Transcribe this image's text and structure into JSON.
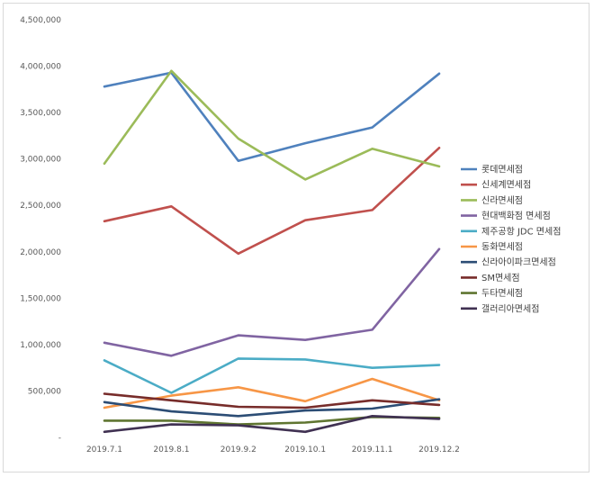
{
  "chart_data": {
    "type": "line",
    "title": "",
    "xlabel": "",
    "ylabel": "",
    "categories": [
      "2019.7.1",
      "2019.8.1",
      "2019.9.2",
      "2019.10.1",
      "2019.11.1",
      "2019.12.2"
    ],
    "ylim": [
      0,
      4500000
    ],
    "yticks": [
      0,
      500000,
      1000000,
      1500000,
      2000000,
      2500000,
      3000000,
      3500000,
      4000000,
      4500000
    ],
    "ytick_labels": [
      "-",
      "500,000",
      "1,000,000",
      "1,500,000",
      "2,000,000",
      "2,500,000",
      "3,000,000",
      "3,500,000",
      "4,000,000",
      "4,500,000"
    ],
    "grid": false,
    "legend_position": "right",
    "series": [
      {
        "name": "롯데면세점",
        "color": "#4f81bd",
        "values": [
          3780000,
          3930000,
          2980000,
          3170000,
          3340000,
          3920000
        ]
      },
      {
        "name": "신세계면세점",
        "color": "#c0504d",
        "values": [
          2330000,
          2490000,
          1980000,
          2340000,
          2450000,
          3120000
        ]
      },
      {
        "name": "신라면세점",
        "color": "#9bbb59",
        "values": [
          2950000,
          3950000,
          3220000,
          2780000,
          3110000,
          2920000
        ]
      },
      {
        "name": "현대백화점 면세점",
        "color": "#8064a2",
        "values": [
          1020000,
          880000,
          1100000,
          1050000,
          1160000,
          2030000
        ]
      },
      {
        "name": "제주공항 JDC 면세점",
        "color": "#4bacc6",
        "values": [
          830000,
          480000,
          850000,
          840000,
          750000,
          780000
        ]
      },
      {
        "name": "동화면세점",
        "color": "#f79646",
        "values": [
          320000,
          450000,
          540000,
          390000,
          630000,
          400000
        ]
      },
      {
        "name": "신라아이파크면세점",
        "color": "#2c4d75",
        "values": [
          380000,
          280000,
          230000,
          290000,
          310000,
          410000
        ]
      },
      {
        "name": "SM면세점",
        "color": "#772c2a",
        "values": [
          470000,
          400000,
          330000,
          320000,
          400000,
          350000
        ]
      },
      {
        "name": "두타면세점",
        "color": "#5f7530",
        "values": [
          180000,
          180000,
          140000,
          160000,
          220000,
          210000
        ]
      },
      {
        "name": "갤러리아면세점",
        "color": "#403152",
        "values": [
          60000,
          140000,
          130000,
          60000,
          230000,
          200000
        ]
      }
    ]
  }
}
